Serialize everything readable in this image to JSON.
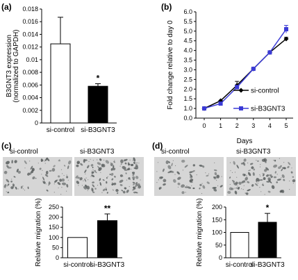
{
  "figure": {
    "panel_labels": [
      "(a)",
      "(b)",
      "(c)",
      "(d)"
    ],
    "panel_c_image_labels": [
      "si-control",
      "si-B3GNT3"
    ],
    "panel_d_image_labels": [
      "si-control",
      "si-B3GNT3"
    ],
    "colors": {
      "control_fill": "#ffffff",
      "knockdown_fill": "#000000",
      "line_control": "#000000",
      "line_knockdown": "#3b3bd6",
      "micrograph_bg": "#d6d6d6",
      "cell": "#555a5a"
    }
  },
  "chart_data": [
    {
      "id": "a",
      "type": "bar",
      "title": "",
      "ylabel_lines": [
        "B3GNT3 expression",
        "(normalized to GAPDH)"
      ],
      "xlabel": "",
      "categories": [
        "si-control",
        "si-B3GNT3"
      ],
      "values": [
        0.0125,
        0.0058
      ],
      "errors": [
        0.0042,
        0.0004
      ],
      "annotations": [
        "",
        "*"
      ],
      "ylim": [
        0,
        0.018
      ],
      "yticks": [
        "0",
        "0.002",
        "0.004",
        "0.006",
        "0.008",
        "0.01",
        "0.012",
        "0.014",
        "0.016",
        "0.018"
      ],
      "grid": false
    },
    {
      "id": "b",
      "type": "line",
      "title": "",
      "ylabel": "Fold change relative to day 0",
      "xlabel": "Days",
      "x": [
        0,
        1,
        2,
        3,
        4,
        5
      ],
      "xticks": [
        "0",
        "1",
        "2",
        "3",
        "4",
        "5"
      ],
      "ylim": [
        0,
        6.0
      ],
      "yticks": [
        "0.0",
        "1.0",
        "1.5",
        "2.0",
        "2.5",
        "3.0",
        "3.5",
        "4.0",
        "4.5",
        "5.0",
        "5.5",
        "6.0"
      ],
      "series": [
        {
          "name": "si-control",
          "values": [
            1.0,
            1.4,
            2.2,
            3.05,
            3.9,
            4.6
          ],
          "errors": [
            0.05,
            0.05,
            0.2,
            0.05,
            0.05,
            0.08
          ]
        },
        {
          "name": "si-B3GNT3",
          "values": [
            1.0,
            1.25,
            2.1,
            3.05,
            3.9,
            5.1
          ],
          "errors": [
            0.05,
            0.05,
            0.1,
            0.05,
            0.05,
            0.2
          ]
        }
      ],
      "legend_position": "lower-right",
      "grid": false
    },
    {
      "id": "c",
      "type": "bar",
      "title": "",
      "ylabel": "Relative migration (%)",
      "xlabel": "",
      "categories": [
        "si-control",
        "si-B3GNT3"
      ],
      "values": [
        100,
        183
      ],
      "errors": [
        0,
        33
      ],
      "annotations": [
        "",
        "**"
      ],
      "ylim": [
        0,
        250
      ],
      "yticks": [
        "0",
        "50",
        "100",
        "150",
        "200",
        "250"
      ],
      "grid": false
    },
    {
      "id": "d",
      "type": "bar",
      "title": "",
      "ylabel": "Relative migration (%)",
      "xlabel": "",
      "categories": [
        "si-control",
        "si-B3GNT3"
      ],
      "values": [
        100,
        140
      ],
      "errors": [
        0,
        35
      ],
      "annotations": [
        "",
        "*"
      ],
      "ylim": [
        0,
        200
      ],
      "yticks": [
        "0",
        "50",
        "100",
        "150",
        "200"
      ],
      "grid": false
    }
  ]
}
